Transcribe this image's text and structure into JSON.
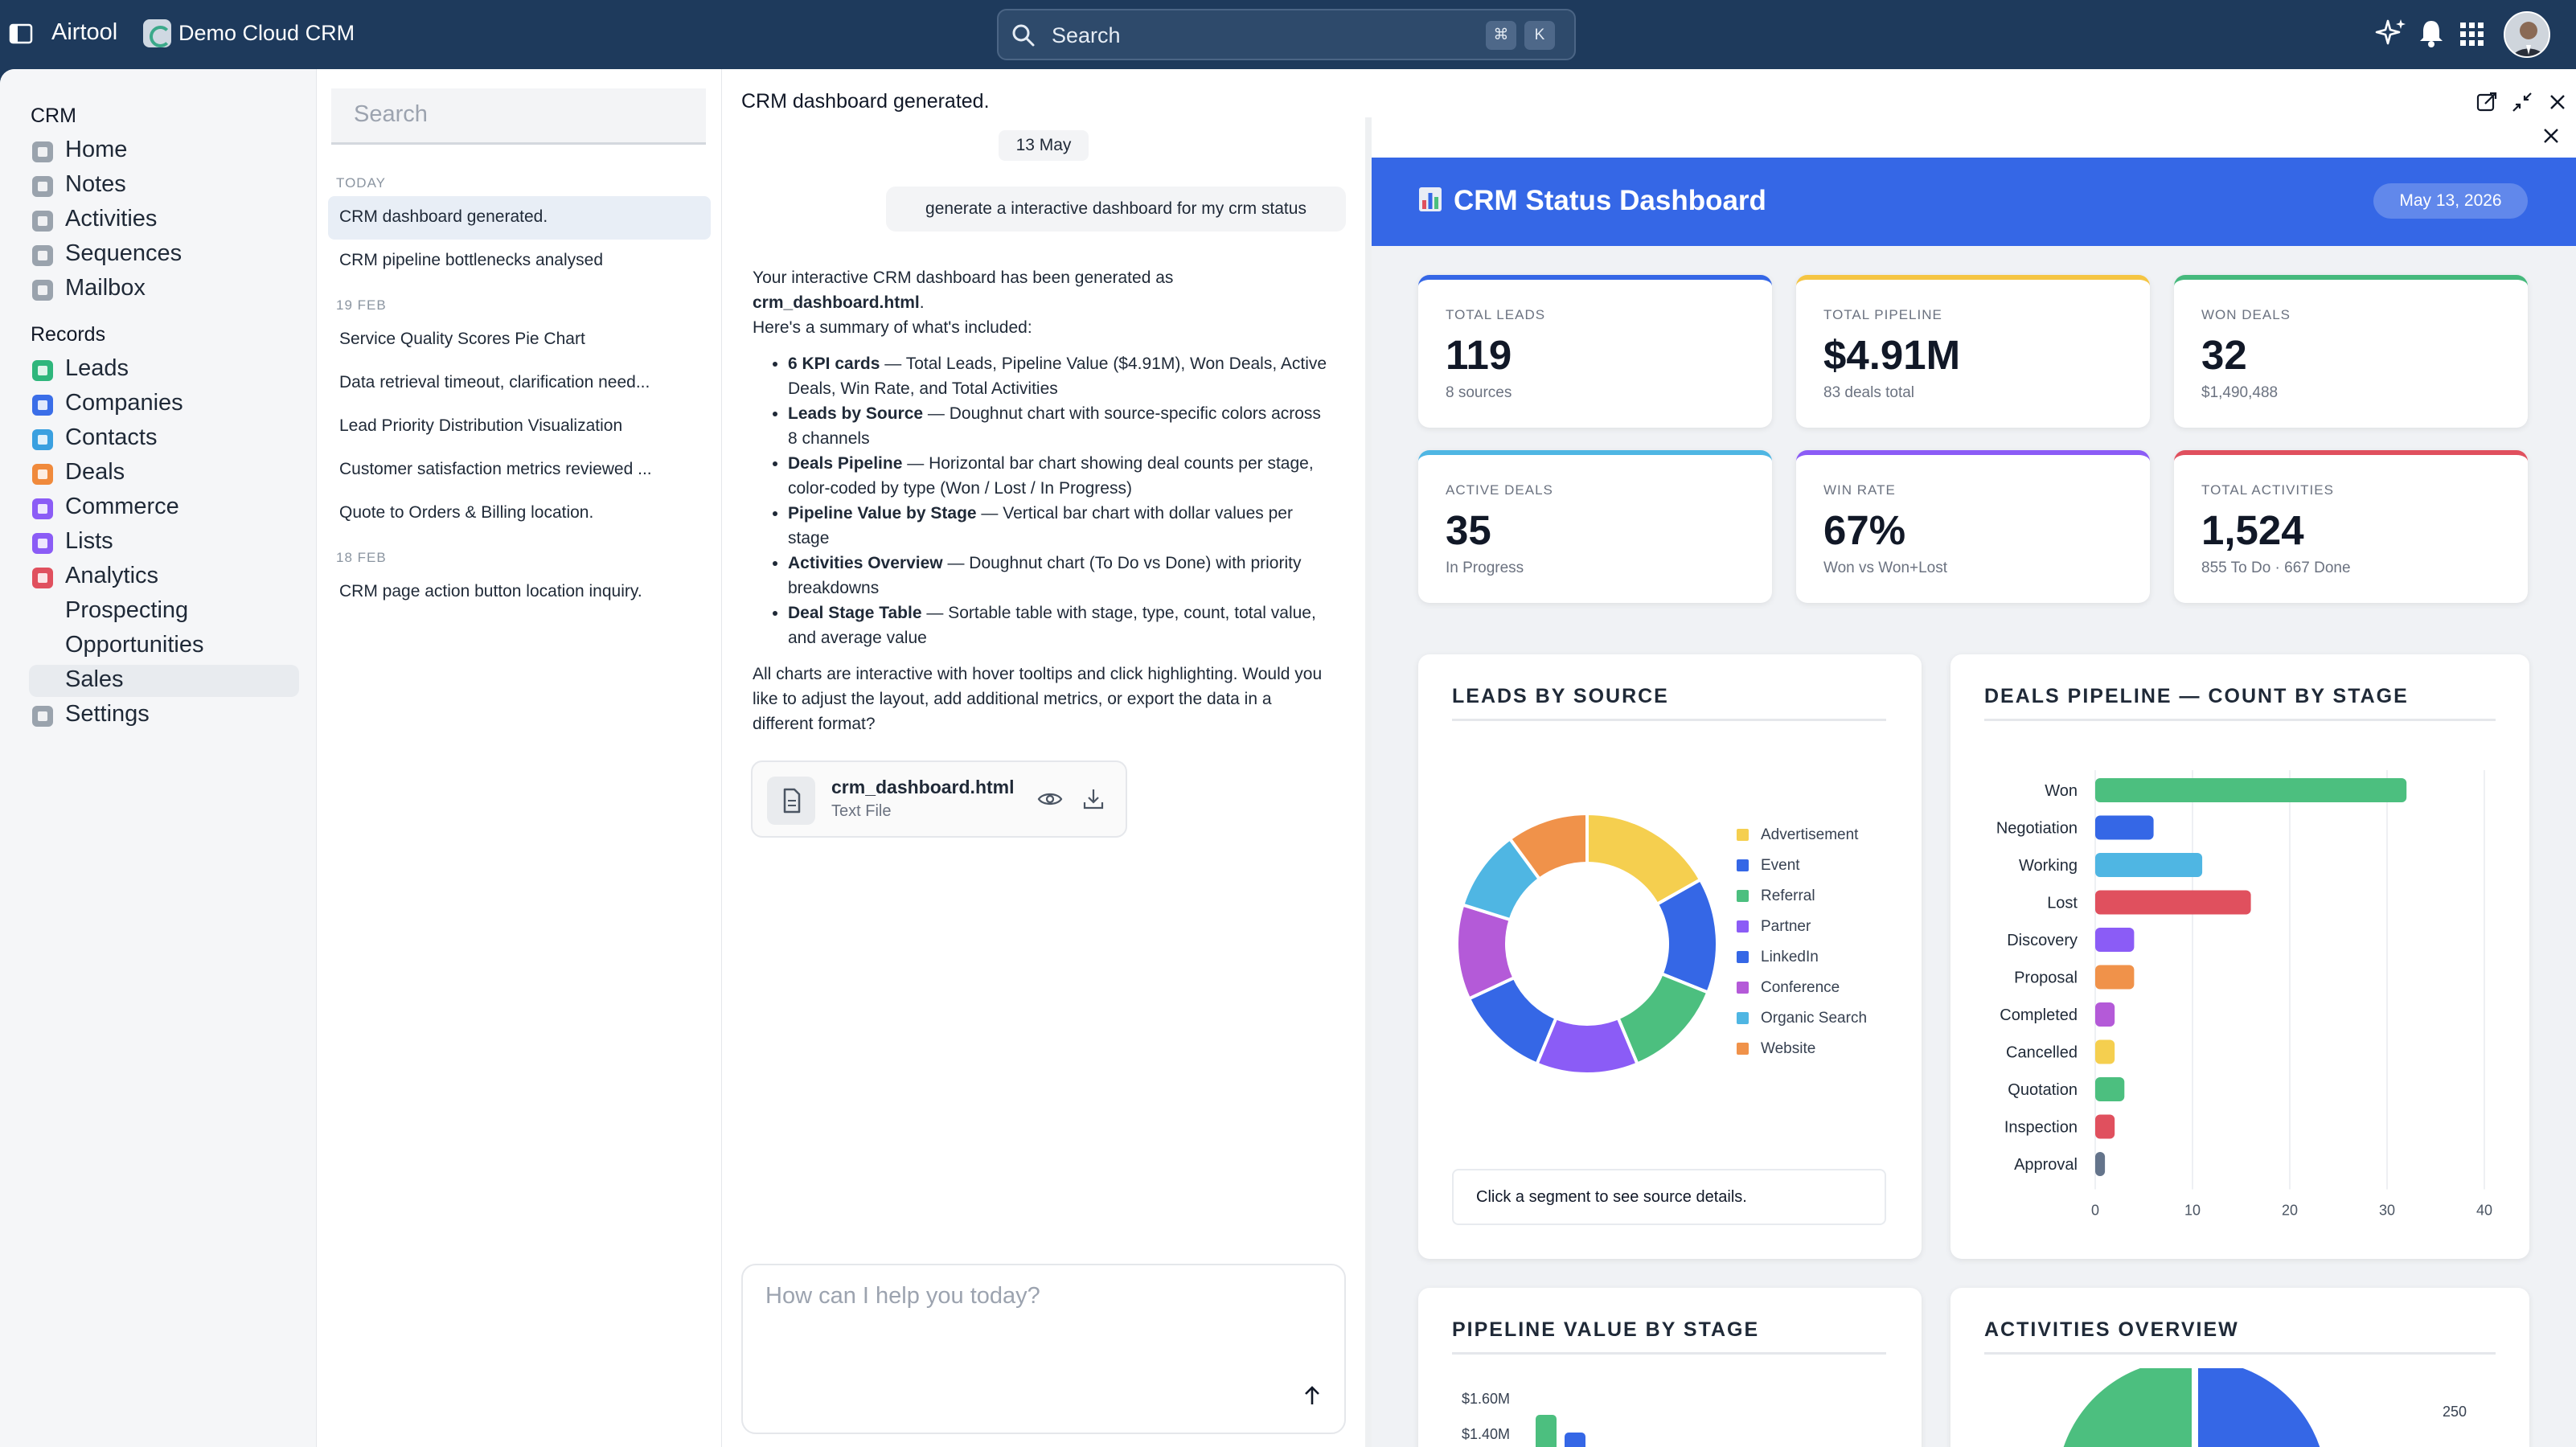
{
  "topbar": {
    "app_name": "Airtool",
    "workspace": "Demo Cloud CRM",
    "search_placeholder": "Search",
    "shortcut_keys": [
      "⌘",
      "K"
    ],
    "icons": [
      "ai-sparkle-icon",
      "bell-icon",
      "apps-grid-icon"
    ]
  },
  "nav": {
    "crm_heading": "CRM",
    "crm_items": [
      {
        "label": "Home",
        "icon": "home-icon",
        "color": "#9aa3ad"
      },
      {
        "label": "Notes",
        "icon": "notes-icon",
        "color": "#9aa3ad"
      },
      {
        "label": "Activities",
        "icon": "activities-icon",
        "color": "#9aa3ad"
      },
      {
        "label": "Sequences",
        "icon": "sequences-icon",
        "color": "#9aa3ad"
      },
      {
        "label": "Mailbox",
        "icon": "mailbox-icon",
        "color": "#9aa3ad"
      }
    ],
    "records_heading": "Records",
    "record_items": [
      {
        "label": "Leads",
        "icon": "leads-icon",
        "color": "#2fb67c"
      },
      {
        "label": "Companies",
        "icon": "companies-icon",
        "color": "#3b6ee8"
      },
      {
        "label": "Contacts",
        "icon": "contacts-icon",
        "color": "#3aa0e0"
      },
      {
        "label": "Deals",
        "icon": "deals-icon",
        "color": "#f08a3c"
      },
      {
        "label": "Commerce",
        "icon": "commerce-icon",
        "color": "#8b5cf6"
      },
      {
        "label": "Lists",
        "icon": "lists-icon",
        "color": "#8b5cf6"
      },
      {
        "label": "Analytics",
        "icon": "analytics-icon",
        "color": "#e0505e"
      }
    ],
    "analytics_sub": [
      "Prospecting",
      "Opportunities",
      "Sales"
    ],
    "settings": "Settings"
  },
  "chats": {
    "search_placeholder": "Search",
    "groups": [
      {
        "label": "TODAY",
        "items": [
          "CRM dashboard generated.",
          "CRM pipeline bottlenecks analysed"
        ]
      },
      {
        "label": "19 FEB",
        "items": [
          "Service Quality Scores Pie Chart",
          "Data retrieval timeout, clarification need...",
          "Lead Priority Distribution Visualization",
          "Customer satisfaction metrics reviewed ...",
          "Quote to Orders & Billing location."
        ]
      },
      {
        "label": "18 FEB",
        "items": [
          "CRM page action button location inquiry."
        ]
      }
    ]
  },
  "conversation": {
    "title": "CRM dashboard generated.",
    "date": "13 May",
    "user_message": "generate a interactive dashboard for my crm status",
    "reply_intro_1": "Your interactive CRM dashboard has been generated as",
    "reply_file_bold": "crm_dashboard.html",
    "reply_intro_2": "Here's a summary of what's included:",
    "bullets": [
      {
        "bold": "6 KPI cards",
        "text": " — Total Leads, Pipeline Value ($4.91M), Won Deals, Active Deals, Win Rate, and Total Activities"
      },
      {
        "bold": "Leads by Source",
        "text": " — Doughnut chart with source-specific colors across 8 channels"
      },
      {
        "bold": "Deals Pipeline",
        "text": " — Horizontal bar chart showing deal counts per stage, color-coded by type (Won / Lost / In Progress)"
      },
      {
        "bold": "Pipeline Value by Stage",
        "text": " — Vertical bar chart with dollar values per stage"
      },
      {
        "bold": "Activities Overview",
        "text": " — Doughnut chart (To Do vs Done) with priority breakdowns"
      },
      {
        "bold": "Deal Stage Table",
        "text": " — Sortable table with stage, type, count, total value, and average value"
      }
    ],
    "reply_outro": "All charts are interactive with hover tooltips and click highlighting. Would you like to adjust the layout, add additional metrics, or export the data in a different format?",
    "file": {
      "name": "crm_dashboard.html",
      "type": "Text File"
    },
    "composer_placeholder": "How can I help you today?"
  },
  "dashboard": {
    "title": "CRM Status Dashboard",
    "date": "May 13, 2026",
    "kpis": [
      {
        "label": "TOTAL LEADS",
        "value": "119",
        "sub": "8 sources",
        "color": "#3567e6"
      },
      {
        "label": "TOTAL PIPELINE",
        "value": "$4.91M",
        "sub": "83 deals total",
        "color": "#f5c542"
      },
      {
        "label": "WON DEALS",
        "value": "32",
        "sub": "$1,490,488",
        "color": "#45b97c"
      },
      {
        "label": "ACTIVE DEALS",
        "value": "35",
        "sub": "In Progress",
        "color": "#4fb6e3"
      },
      {
        "label": "WIN RATE",
        "value": "67%",
        "sub": "Won vs Won+Lost",
        "color": "#8b5cf6"
      },
      {
        "label": "TOTAL ACTIVITIES",
        "value": "1,524",
        "sub": "855 To Do · 667 Done",
        "color": "#e0505e"
      }
    ],
    "leads_title": "LEADS BY SOURCE",
    "leads_hint": "Click a segment to see source details.",
    "pipeline_title": "DEALS PIPELINE — COUNT BY STAGE",
    "value_title": "PIPELINE VALUE BY STAGE",
    "activities_title": "ACTIVITIES OVERVIEW"
  },
  "chart_data": [
    {
      "type": "pie",
      "title": "LEADS BY SOURCE",
      "categories": [
        "Advertisement",
        "Event",
        "Referral",
        "Partner",
        "LinkedIn",
        "Conference",
        "Organic Search",
        "Website"
      ],
      "values": [
        20,
        17,
        15,
        15,
        14,
        14,
        12,
        12
      ],
      "colors": [
        "#f5cf4f",
        "#3567e6",
        "#4cbf7f",
        "#8b5cf6",
        "#3567e6",
        "#b45ad8",
        "#4fb6e3",
        "#f0924a"
      ],
      "legend": "right"
    },
    {
      "type": "bar",
      "title": "DEALS PIPELINE — COUNT BY STAGE",
      "orientation": "horizontal",
      "categories": [
        "Won",
        "Negotiation",
        "Working",
        "Lost",
        "Discovery",
        "Proposal",
        "Completed",
        "Cancelled",
        "Quotation",
        "Inspection",
        "Approval"
      ],
      "values": [
        32,
        6,
        11,
        16,
        4,
        4,
        2,
        2,
        3,
        2,
        1
      ],
      "colors": [
        "#4cbf7f",
        "#3567e6",
        "#4fb6e3",
        "#e0505e",
        "#8b5cf6",
        "#f0924a",
        "#b45ad8",
        "#f5cf4f",
        "#4cbf7f",
        "#e0505e",
        "#64748b"
      ],
      "xticks": [
        0,
        10,
        20,
        30,
        40
      ],
      "xlim": [
        0,
        40
      ]
    },
    {
      "type": "bar",
      "title": "PIPELINE VALUE BY STAGE",
      "yticks": [
        "$1.60M",
        "$1.40M"
      ]
    },
    {
      "type": "pie",
      "title": "ACTIVITIES OVERVIEW",
      "tick_labels": [
        "250"
      ]
    }
  ]
}
